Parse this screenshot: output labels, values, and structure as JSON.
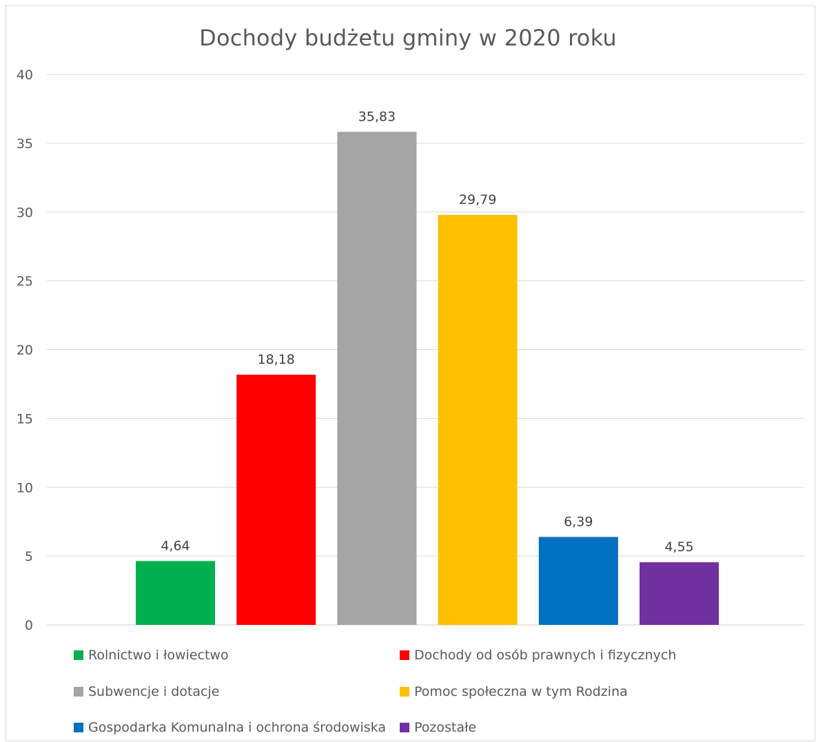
{
  "chart_data": {
    "type": "bar",
    "title": "Dochody budżetu gminy w 2020 roku",
    "xlabel": "",
    "ylabel": "",
    "ylim": [
      0,
      40
    ],
    "yticks": [
      "0",
      "5",
      "10",
      "15",
      "20",
      "25",
      "30",
      "35",
      "40"
    ],
    "grid": true,
    "legend_position": "bottom",
    "categories": [
      "Rolnictwo i łowiectwo",
      "Dochody od osób prawnych i fizycznych",
      "Subwencje i dotacje",
      "Pomoc społeczna w tym Rodzina",
      "Gospodarka Komunalna i ochrona środowiska",
      "Pozostałe"
    ],
    "values": [
      4.64,
      18.18,
      35.83,
      29.79,
      6.39,
      4.55
    ],
    "data_labels": [
      "4,64",
      "18,18",
      "35,83",
      "29,79",
      "6,39",
      "4,55"
    ],
    "colors": [
      "#00b050",
      "#ff0000",
      "#a5a5a5",
      "#ffc000",
      "#0070c0",
      "#7030a0"
    ]
  }
}
